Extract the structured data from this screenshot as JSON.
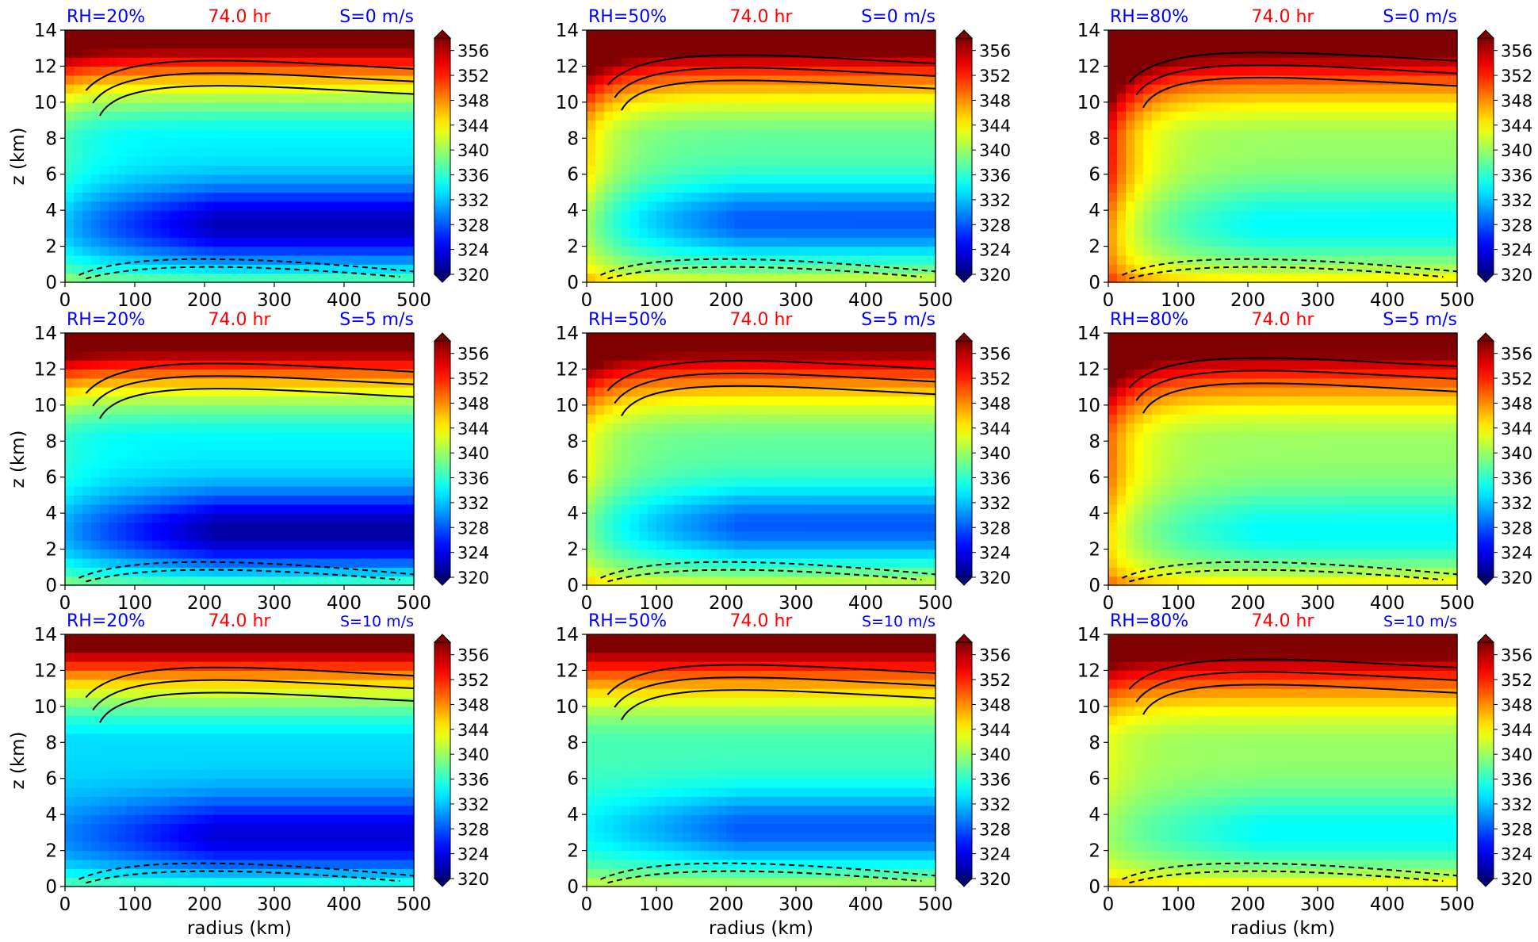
{
  "figure": {
    "panel_defaults": {
      "type": "heatmap",
      "time_label": "74.0 hr",
      "x_ticks": [
        0,
        100,
        200,
        300,
        400,
        500
      ],
      "y_ticks": [
        0,
        2,
        4,
        6,
        8,
        10,
        12,
        14
      ],
      "xlim": [
        0,
        500
      ],
      "ylim": [
        0,
        14
      ],
      "colorbar_ticks": [
        320,
        324,
        328,
        332,
        336,
        340,
        344,
        348,
        352,
        356
      ],
      "colorbar_range": [
        320,
        358
      ],
      "colorbar_extend": "both",
      "contours": "solid = positive, dashed = negative",
      "colors": {
        "title_left": "#0000ff",
        "title_center": "#ff0000",
        "title_right": "#0000ff"
      }
    },
    "colormap": [
      "#00007f",
      "#0000ff",
      "#007fff",
      "#00ffff",
      "#7fff7f",
      "#ffff00",
      "#ff7f00",
      "#ff0000",
      "#7f0000"
    ]
  },
  "chart_data": [
    {
      "rh": "RH=20%",
      "shear": "S=0 m/s",
      "show_ylabel": true,
      "show_xlabel": false,
      "ylabel": "z (km)",
      "xlabel": "",
      "field": {
        "base": 334,
        "cold_min": 322,
        "cold_z": 3.2,
        "warm_core": 3,
        "upper": 354
      }
    },
    {
      "rh": "RH=50%",
      "shear": "S=0 m/s",
      "show_ylabel": false,
      "show_xlabel": false,
      "ylabel": "",
      "xlabel": "",
      "field": {
        "base": 338,
        "cold_min": 328,
        "cold_z": 3.4,
        "warm_core": 8,
        "upper": 356
      }
    },
    {
      "rh": "RH=80%",
      "shear": "S=0 m/s",
      "show_ylabel": false,
      "show_xlabel": false,
      "ylabel": "",
      "xlabel": "",
      "field": {
        "base": 340,
        "cold_min": 334,
        "cold_z": 3.2,
        "warm_core": 14,
        "upper": 357
      }
    },
    {
      "rh": "RH=20%",
      "shear": "S=5 m/s",
      "show_ylabel": true,
      "show_xlabel": false,
      "ylabel": "z (km)",
      "xlabel": "",
      "field": {
        "base": 334,
        "cold_min": 321,
        "cold_z": 3.0,
        "warm_core": 2,
        "upper": 354
      }
    },
    {
      "rh": "RH=50%",
      "shear": "S=5 m/s",
      "show_ylabel": false,
      "show_xlabel": false,
      "ylabel": "",
      "xlabel": "",
      "field": {
        "base": 338,
        "cold_min": 328,
        "cold_z": 3.3,
        "warm_core": 6,
        "upper": 355
      }
    },
    {
      "rh": "RH=80%",
      "shear": "S=5 m/s",
      "show_ylabel": false,
      "show_xlabel": false,
      "ylabel": "",
      "xlabel": "",
      "field": {
        "base": 340,
        "cold_min": 334,
        "cold_z": 3.0,
        "warm_core": 10,
        "upper": 356
      }
    },
    {
      "rh": "RH=20%",
      "shear": "S=10 m/s",
      "show_ylabel": true,
      "show_xlabel": true,
      "ylabel": "z (km)",
      "xlabel": "radius (km)",
      "field": {
        "base": 333,
        "cold_min": 323,
        "cold_z": 2.8,
        "warm_core": 0,
        "upper": 353
      }
    },
    {
      "rh": "RH=50%",
      "shear": "S=10 m/s",
      "show_ylabel": false,
      "show_xlabel": true,
      "ylabel": "",
      "xlabel": "radius (km)",
      "field": {
        "base": 337,
        "cold_min": 328,
        "cold_z": 3.2,
        "warm_core": 0,
        "upper": 354
      }
    },
    {
      "rh": "RH=80%",
      "shear": "S=10 m/s",
      "show_ylabel": false,
      "show_xlabel": true,
      "ylabel": "",
      "xlabel": "radius (km)",
      "field": {
        "base": 340,
        "cold_min": 334,
        "cold_z": 3.0,
        "warm_core": 3,
        "upper": 356
      }
    }
  ]
}
